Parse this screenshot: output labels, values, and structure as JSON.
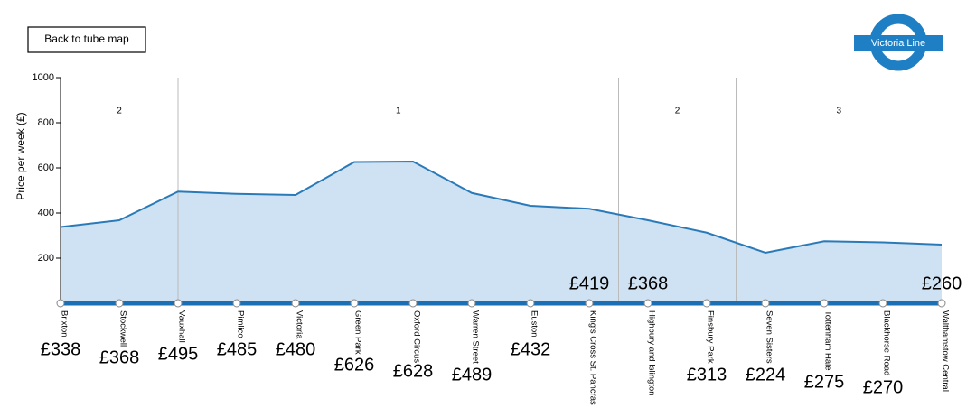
{
  "chart_data": {
    "type": "area",
    "button": "Back to tube map",
    "logo": "Victoria Line",
    "y_label": "Price per week (£)",
    "color": "#2a7ab8",
    "categories": [
      "Brixton",
      "Stockwell",
      "Vauxhall",
      "Pimlico",
      "Victoria",
      "Green Park",
      "Oxford Circus",
      "Warren Street",
      "Euston",
      "King's Cross St. Pancras",
      "Highbury and Islington",
      "Finsbury Park",
      "Seven Sisters",
      "Tottenham Hale",
      "Blackhorse Road",
      "Walthamstow Central"
    ],
    "values": [
      338,
      368,
      495,
      485,
      480,
      626,
      628,
      489,
      432,
      419,
      368,
      313,
      224,
      275,
      270,
      260
    ],
    "value_labels": [
      "£338",
      "£368",
      "£495",
      "£485",
      "£480",
      "£626",
      "£628",
      "£489",
      "£432",
      "£419",
      "£368",
      "£313",
      "£224",
      "£275",
      "£270",
      "£260"
    ],
    "ylim": [
      0,
      1000
    ],
    "yticks": [
      200,
      400,
      600,
      800,
      1000
    ],
    "zones": [
      {
        "label": "2",
        "first": "Brixton",
        "last": "Vauxhall"
      },
      {
        "label": "1",
        "first": "Vauxhall",
        "last": "King's Cross St. Pancras"
      },
      {
        "label": "2",
        "first": "Highbury and Islington",
        "last": "Finsbury Park"
      },
      {
        "label": "3",
        "first": "Seven Sisters",
        "last": "Walthamstow Central"
      }
    ]
  }
}
